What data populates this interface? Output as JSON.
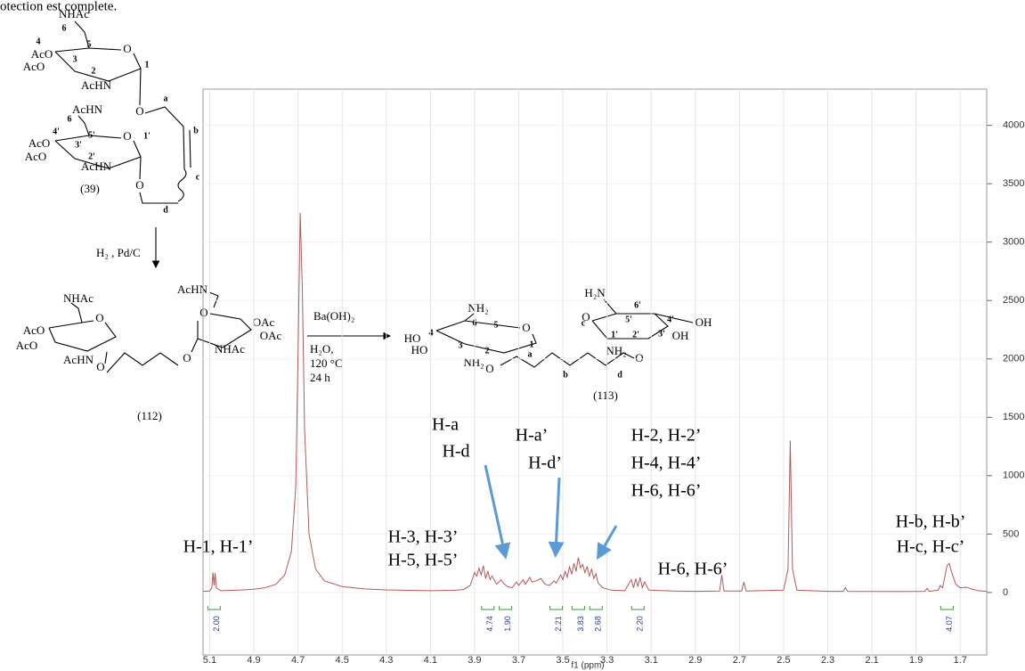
{
  "header_fragment": "otection est complete.",
  "scheme": {
    "atoms_39": [
      "NHAc",
      "6",
      "4",
      "5",
      "O",
      "AcO",
      "3",
      "AcO",
      "2",
      "1",
      "AcHN",
      "O",
      "a",
      "AcHN",
      "6",
      "b",
      "4'",
      "5'",
      "O",
      "1'",
      "AcO",
      "3'",
      "AcO",
      "2'",
      "c",
      "AcHN",
      "O",
      "(39)",
      "d"
    ],
    "reagent_1": "H₂ , Pd/C",
    "atoms_112": [
      "NHAc",
      "O",
      "AcO",
      "AcO",
      "AcHN",
      "O",
      "O",
      "AcHN",
      "O",
      "OAc",
      "OAc",
      "NHAc",
      "(112)"
    ],
    "reagent_2": [
      "Ba(OH)₂",
      "H₂O,",
      "120 °C",
      "24 h"
    ],
    "atoms_113": [
      "NH₂",
      "6",
      "5",
      "O",
      "4",
      "HO",
      "3",
      "1",
      "HO",
      "2",
      "NH₂",
      "O",
      "a",
      "c",
      "b",
      "d",
      "O",
      "1'",
      "H₂N",
      "6'",
      "O",
      "5'",
      "4'",
      "3'",
      "OH",
      "2'",
      "NH₂",
      "OH",
      "(113)"
    ]
  },
  "chart_data": {
    "type": "line",
    "color": "#b35a5a",
    "x": [
      5.13,
      5.1,
      5.09,
      5.085,
      5.08,
      5.075,
      5.07,
      5.05,
      5.0,
      4.95,
      4.9,
      4.85,
      4.8,
      4.76,
      4.73,
      4.71,
      4.7,
      4.69,
      4.68,
      4.67,
      4.65,
      4.62,
      4.58,
      4.5,
      4.4,
      4.3,
      4.2,
      4.1,
      4.0,
      3.95,
      3.92,
      3.9,
      3.89,
      3.88,
      3.87,
      3.86,
      3.85,
      3.84,
      3.83,
      3.82,
      3.8,
      3.78,
      3.77,
      3.75,
      3.73,
      3.71,
      3.7,
      3.68,
      3.67,
      3.65,
      3.64,
      3.62,
      3.6,
      3.58,
      3.56,
      3.54,
      3.53,
      3.51,
      3.5,
      3.49,
      3.48,
      3.47,
      3.46,
      3.45,
      3.44,
      3.43,
      3.42,
      3.41,
      3.4,
      3.39,
      3.38,
      3.37,
      3.36,
      3.35,
      3.34,
      3.32,
      3.28,
      3.22,
      3.19,
      3.18,
      3.17,
      3.16,
      3.15,
      3.14,
      3.13,
      3.11,
      3.0,
      2.9,
      2.79,
      2.78,
      2.77,
      2.69,
      2.68,
      2.67,
      2.5,
      2.48,
      2.47,
      2.46,
      2.44,
      2.3,
      2.23,
      2.22,
      2.21,
      2.0,
      1.86,
      1.85,
      1.84,
      1.8,
      1.79,
      1.78,
      1.77,
      1.76,
      1.75,
      1.74,
      1.72,
      1.7,
      1.67,
      1.65,
      1.62,
      1.58
    ],
    "values": [
      10,
      12,
      40,
      170,
      60,
      165,
      40,
      15,
      18,
      22,
      28,
      40,
      70,
      150,
      350,
      900,
      2000,
      3250,
      2600,
      1400,
      500,
      200,
      100,
      50,
      30,
      22,
      18,
      15,
      18,
      25,
      60,
      170,
      140,
      210,
      150,
      230,
      120,
      180,
      110,
      140,
      70,
      110,
      80,
      50,
      40,
      90,
      60,
      110,
      70,
      130,
      90,
      100,
      120,
      70,
      60,
      100,
      80,
      150,
      110,
      180,
      130,
      220,
      160,
      250,
      180,
      300,
      210,
      240,
      170,
      220,
      140,
      200,
      120,
      160,
      80,
      40,
      20,
      15,
      110,
      40,
      120,
      50,
      130,
      40,
      90,
      20,
      12,
      10,
      12,
      150,
      12,
      12,
      90,
      12,
      20,
      200,
      1300,
      200,
      20,
      10,
      10,
      40,
      10,
      8,
      10,
      35,
      10,
      20,
      60,
      40,
      130,
      230,
      250,
      180,
      70,
      40,
      45,
      30,
      15,
      10
    ],
    "xlim": [
      5.13,
      1.58
    ],
    "ylim": [
      -535,
      4310
    ],
    "xticks": [
      5.1,
      4.9,
      4.7,
      4.5,
      4.3,
      4.1,
      3.9,
      3.7,
      3.5,
      3.3,
      3.1,
      2.9,
      2.7,
      2.5,
      2.3,
      2.1,
      1.9,
      1.7
    ],
    "yticks": [
      0,
      500,
      1000,
      1500,
      2000,
      2500,
      3000,
      3500,
      4000
    ],
    "xlabel": "f1 (ppm)",
    "grid": true,
    "integrals": [
      {
        "ppm": 5.08,
        "label": "2.00"
      },
      {
        "ppm": 3.84,
        "label": "4.74"
      },
      {
        "ppm": 3.76,
        "label": "1.90"
      },
      {
        "ppm": 3.53,
        "label": "2.21"
      },
      {
        "ppm": 3.43,
        "label": "3.83"
      },
      {
        "ppm": 3.35,
        "label": "2.68"
      },
      {
        "ppm": 3.16,
        "label": "2.20"
      },
      {
        "ppm": 1.76,
        "label": "4.07"
      }
    ],
    "annotations": [
      "H-1, H-1’",
      "H-3, H-3’",
      "H-5, H-5’",
      "H-a",
      "H-d",
      "H-a’",
      "H-d’",
      "H-2, H-2’",
      "H-4, H-4’",
      "H-6, H-6’",
      "H-6, H-6’",
      "H-b, H-b’",
      "H-c, H-c’"
    ]
  }
}
